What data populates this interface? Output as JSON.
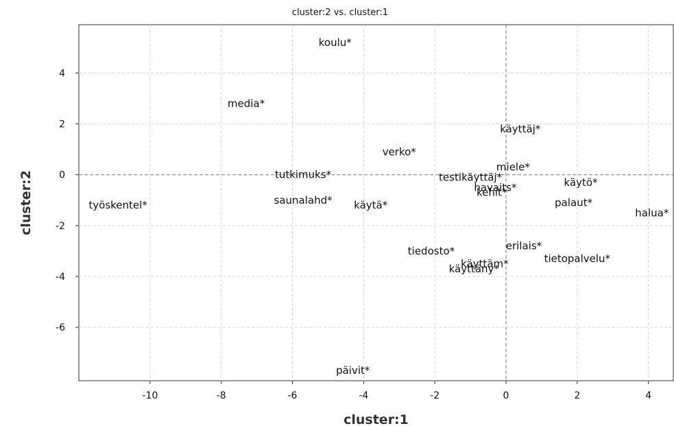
{
  "chart_data": {
    "type": "scatter",
    "title": "cluster:2 vs. cluster:1",
    "xlabel": "cluster:1",
    "ylabel": "cluster:2",
    "xlim": [
      -12.0,
      4.7
    ],
    "ylim": [
      -8.1,
      5.9
    ],
    "xticks": [
      -10,
      -8,
      -6,
      -4,
      -2,
      0,
      2,
      4
    ],
    "yticks": [
      4,
      2,
      0,
      -2,
      -4,
      -6
    ],
    "grid": true,
    "zero_lines": true,
    "points": [
      {
        "label": "koulu*",
        "x": -4.8,
        "y": 5.2
      },
      {
        "label": "media*",
        "x": -7.3,
        "y": 2.8
      },
      {
        "label": "käyttäj*",
        "x": 0.4,
        "y": 1.8
      },
      {
        "label": "verko*",
        "x": -3.0,
        "y": 0.9
      },
      {
        "label": "miele*",
        "x": 0.2,
        "y": 0.3
      },
      {
        "label": "tutkimuks*",
        "x": -5.7,
        "y": 0.0
      },
      {
        "label": "testikäyttäj*",
        "x": -1.0,
        "y": -0.1
      },
      {
        "label": "käytö*",
        "x": 2.1,
        "y": -0.3
      },
      {
        "label": "havaits*",
        "x": -0.3,
        "y": -0.5
      },
      {
        "label": "kehit*",
        "x": -0.4,
        "y": -0.7
      },
      {
        "label": "työskentel*",
        "x": -10.9,
        "y": -1.2
      },
      {
        "label": "saunalahd*",
        "x": -5.7,
        "y": -1.0
      },
      {
        "label": "käytä*",
        "x": -3.8,
        "y": -1.2
      },
      {
        "label": "palaut*",
        "x": 1.9,
        "y": -1.1
      },
      {
        "label": "halua*",
        "x": 4.1,
        "y": -1.5
      },
      {
        "label": "erilais*",
        "x": 0.5,
        "y": -2.8
      },
      {
        "label": "tiedosto*",
        "x": -2.1,
        "y": -3.0
      },
      {
        "label": "tietopalvelu*",
        "x": 2.0,
        "y": -3.3
      },
      {
        "label": "käyttäm*",
        "x": -0.6,
        "y": -3.5
      },
      {
        "label": "käyttäny*",
        "x": -0.9,
        "y": -3.7
      },
      {
        "label": "päivit*",
        "x": -4.3,
        "y": -7.7
      }
    ]
  }
}
